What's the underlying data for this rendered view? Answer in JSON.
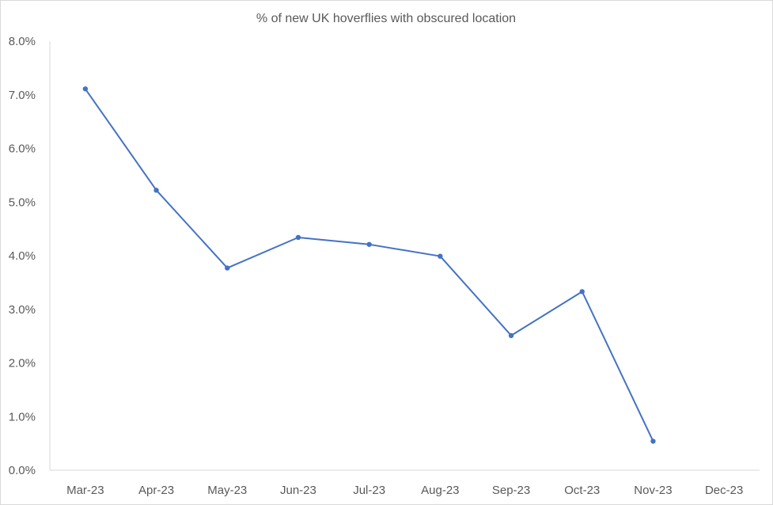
{
  "chart_data": {
    "type": "line",
    "title": "% of new UK hoverflies with obscured location",
    "xlabel": "",
    "ylabel": "",
    "categories": [
      "Mar-23",
      "Apr-23",
      "May-23",
      "Jun-23",
      "Jul-23",
      "Aug-23",
      "Sep-23",
      "Oct-23",
      "Nov-23",
      "Dec-23"
    ],
    "series": [
      {
        "values": [
          0.0711,
          0.0522,
          0.0377,
          0.0434,
          0.0421,
          0.0399,
          0.0251,
          0.0333,
          0.0054,
          null
        ]
      }
    ],
    "ylim": [
      0,
      0.08
    ],
    "yticks": [
      0,
      0.01,
      0.02,
      0.03,
      0.04,
      0.05,
      0.06,
      0.07,
      0.08
    ],
    "ytick_labels": [
      "0.0%",
      "1.0%",
      "2.0%",
      "3.0%",
      "4.0%",
      "5.0%",
      "6.0%",
      "7.0%",
      "8.0%"
    ],
    "grid": false,
    "legend": "none",
    "colors": {
      "line": "#4472c4",
      "axis": "#d9d9d9",
      "text": "#595959"
    }
  }
}
